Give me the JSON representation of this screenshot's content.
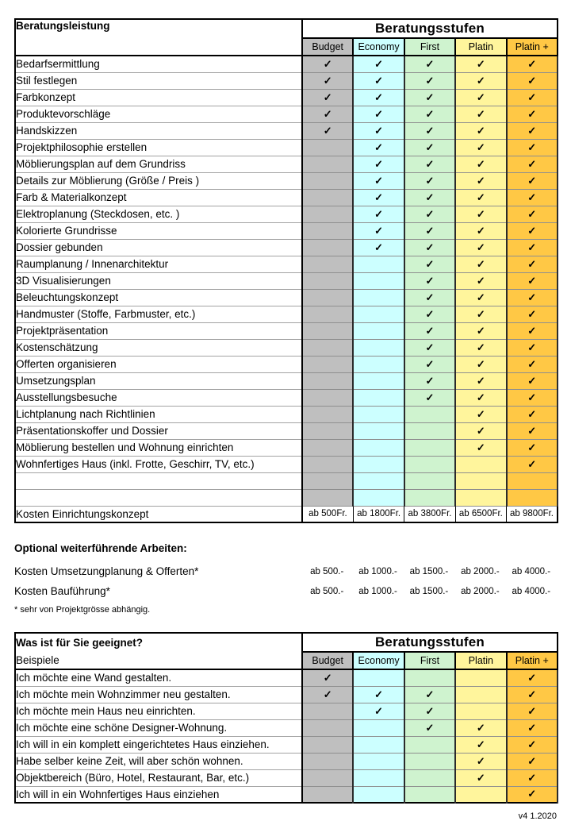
{
  "check_glyph": "✓",
  "table1": {
    "left_header": "Beratungsleistung",
    "stufen_header": "Beratungsstufen",
    "levels": [
      {
        "label": "Budget",
        "color": "#BFBFBF"
      },
      {
        "label": "Economy",
        "color": "#CCFFFF"
      },
      {
        "label": "First",
        "color": "#CFF3CF"
      },
      {
        "label": "Platin",
        "color": "#FFF59C"
      },
      {
        "label": "Platin +",
        "color": "#FFC845"
      }
    ],
    "rows": [
      {
        "label": "Bedarfsermittlung",
        "checks": [
          1,
          1,
          1,
          1,
          1
        ]
      },
      {
        "label": "Stil festlegen",
        "checks": [
          1,
          1,
          1,
          1,
          1
        ]
      },
      {
        "label": "Farbkonzept",
        "checks": [
          1,
          1,
          1,
          1,
          1
        ]
      },
      {
        "label": "Produktevorschläge",
        "checks": [
          1,
          1,
          1,
          1,
          1
        ]
      },
      {
        "label": "Handskizzen",
        "checks": [
          1,
          1,
          1,
          1,
          1
        ]
      },
      {
        "label": "Projektphilosophie erstellen",
        "checks": [
          0,
          1,
          1,
          1,
          1
        ]
      },
      {
        "label": "Möblierungsplan auf dem Grundriss",
        "checks": [
          0,
          1,
          1,
          1,
          1
        ]
      },
      {
        "label": "Details zur Möblierung (Größe / Preis )",
        "checks": [
          0,
          1,
          1,
          1,
          1
        ]
      },
      {
        "label": "Farb & Materialkonzept",
        "checks": [
          0,
          1,
          1,
          1,
          1
        ]
      },
      {
        "label": "Elektroplanung (Steckdosen, etc. )",
        "checks": [
          0,
          1,
          1,
          1,
          1
        ]
      },
      {
        "label": "Kolorierte Grundrisse",
        "checks": [
          0,
          1,
          1,
          1,
          1
        ]
      },
      {
        "label": "Dossier gebunden",
        "checks": [
          0,
          1,
          1,
          1,
          1
        ]
      },
      {
        "label": "Raumplanung / Innenarchitektur",
        "checks": [
          0,
          0,
          1,
          1,
          1
        ]
      },
      {
        "label": "3D Visualisierungen",
        "checks": [
          0,
          0,
          1,
          1,
          1
        ]
      },
      {
        "label": "Beleuchtungskonzept",
        "checks": [
          0,
          0,
          1,
          1,
          1
        ]
      },
      {
        "label": "Handmuster (Stoffe, Farbmuster, etc.)",
        "checks": [
          0,
          0,
          1,
          1,
          1
        ]
      },
      {
        "label": "Projektpräsentation",
        "checks": [
          0,
          0,
          1,
          1,
          1
        ]
      },
      {
        "label": "Kostenschätzung",
        "checks": [
          0,
          0,
          1,
          1,
          1
        ]
      },
      {
        "label": "Offerten organisieren",
        "checks": [
          0,
          0,
          1,
          1,
          1
        ]
      },
      {
        "label": "Umsetzungsplan",
        "checks": [
          0,
          0,
          1,
          1,
          1
        ]
      },
      {
        "label": "Ausstellungsbesuche",
        "checks": [
          0,
          0,
          1,
          1,
          1
        ]
      },
      {
        "label": "Lichtplanung nach Richtlinien",
        "checks": [
          0,
          0,
          0,
          1,
          1
        ]
      },
      {
        "label": "Präsentationskoffer und Dossier",
        "checks": [
          0,
          0,
          0,
          1,
          1
        ]
      },
      {
        "label": "Möblierung bestellen und Wohnung einrichten",
        "checks": [
          0,
          0,
          0,
          1,
          1
        ]
      },
      {
        "label": "Wohnfertiges Haus (inkl. Frotte, Geschirr, TV, etc.)",
        "checks": [
          0,
          0,
          0,
          0,
          1
        ]
      },
      {
        "label": "",
        "checks": [
          0,
          0,
          0,
          0,
          0
        ]
      },
      {
        "label": "",
        "checks": [
          0,
          0,
          0,
          0,
          0
        ]
      }
    ],
    "price_row": {
      "label": "Kosten Einrichtungskonzept",
      "values": [
        "ab 500Fr.",
        "ab 1800Fr.",
        "ab 3800Fr.",
        "ab 6500Fr.",
        "ab 9800Fr."
      ]
    }
  },
  "optional": {
    "title": "Optional weiterführende Arbeiten:",
    "rows": [
      {
        "label": "Kosten Umsetzungplanung & Offerten*",
        "values": [
          "ab 500.-",
          "ab 1000.-",
          "ab 1500.-",
          "ab 2000.-",
          "ab 4000.-"
        ]
      },
      {
        "label": "Kosten Bauführung*",
        "values": [
          "ab 500.-",
          "ab 1000.-",
          "ab 1500.-",
          "ab 2000.-",
          "ab 4000.-"
        ]
      }
    ],
    "footnote": "* sehr von Projektgrösse abhängig."
  },
  "table2": {
    "left_header_line1": "Was ist für Sie geeignet?",
    "left_header_line2": "Beispiele",
    "stufen_header": "Beratungsstufen",
    "rows": [
      {
        "label": "Ich möchte eine Wand gestalten.",
        "checks": [
          1,
          0,
          0,
          0,
          1
        ]
      },
      {
        "label": "Ich möchte mein Wohnzimmer neu gestalten.",
        "checks": [
          1,
          1,
          1,
          0,
          1
        ]
      },
      {
        "label": "Ich möchte mein Haus neu einrichten.",
        "checks": [
          0,
          1,
          1,
          0,
          1
        ]
      },
      {
        "label": "Ich möchte eine schöne Designer-Wohnung.",
        "checks": [
          0,
          0,
          1,
          1,
          1
        ]
      },
      {
        "label": "Ich will in ein komplett eingerichtetes Haus einziehen.",
        "checks": [
          0,
          0,
          0,
          1,
          1
        ]
      },
      {
        "label": "Habe selber keine Zeit, will aber schön wohnen.",
        "checks": [
          0,
          0,
          0,
          1,
          1
        ]
      },
      {
        "label": "Objektbereich (Büro, Hotel, Restaurant, Bar, etc.)",
        "checks": [
          0,
          0,
          0,
          1,
          1
        ]
      },
      {
        "label": "Ich will in ein Wohnfertiges Haus einziehen",
        "checks": [
          0,
          0,
          0,
          0,
          1
        ]
      }
    ]
  },
  "footer": "v4 1.2020"
}
